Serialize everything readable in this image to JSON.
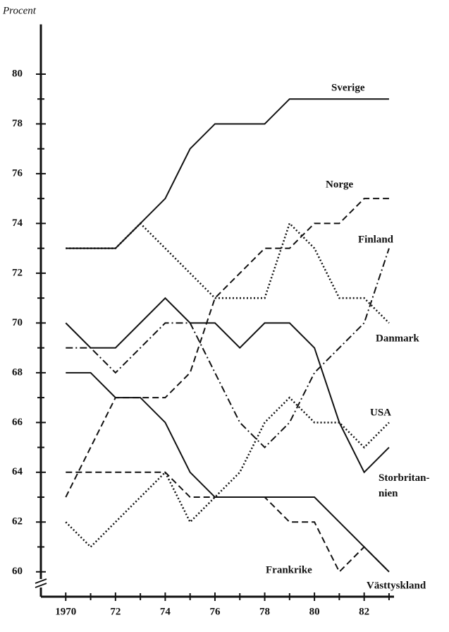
{
  "chart_data": {
    "type": "line",
    "y_axis_label": "Procent",
    "x": [
      1970,
      1971,
      1972,
      1973,
      1974,
      1975,
      1976,
      1977,
      1978,
      1979,
      1980,
      1981,
      1982,
      1983
    ],
    "xlim": [
      1969,
      1983.2
    ],
    "xticks": [
      1970,
      {
        "value": 1972,
        "label": "72"
      },
      {
        "value": 1974,
        "label": "74"
      },
      {
        "value": 1976,
        "label": "76"
      },
      {
        "value": 1978,
        "label": "78"
      },
      {
        "value": 1980,
        "label": "80"
      },
      {
        "value": 1982,
        "label": "82"
      }
    ],
    "ylim": [
      59,
      82
    ],
    "yticks": [
      60,
      62,
      64,
      66,
      68,
      70,
      72,
      74,
      76,
      78,
      80
    ],
    "series": [
      {
        "name": "Sverige",
        "color": "#111111",
        "style": "solid",
        "values": [
          73,
          73,
          73,
          74,
          75,
          77,
          78,
          78,
          78,
          79,
          79,
          79,
          79,
          79
        ]
      },
      {
        "name": "Norge",
        "color": "#111111",
        "style": "dashed",
        "values": [
          63,
          65,
          67,
          67,
          67,
          68,
          71,
          72,
          73,
          73,
          74,
          74,
          75,
          75
        ]
      },
      {
        "name": "Finland",
        "color": "#111111",
        "style": "dashdot",
        "values": [
          69,
          69,
          68,
          69,
          70,
          70,
          68,
          66,
          65,
          66,
          68,
          69,
          70,
          73
        ]
      },
      {
        "name": "Danmark",
        "color": "#111111",
        "style": "dotted",
        "values": [
          73,
          73,
          73,
          74,
          73,
          72,
          71,
          71,
          71,
          74,
          73,
          71,
          71,
          70
        ]
      },
      {
        "name": "USA",
        "color": "#111111",
        "style": "dotted",
        "values": [
          62,
          61,
          62,
          63,
          64,
          62,
          63,
          64,
          66,
          67,
          66,
          66,
          65,
          66
        ]
      },
      {
        "name": "Storbritan-nien",
        "color": "#111111",
        "style": "solid",
        "values": [
          70,
          69,
          69,
          70,
          71,
          70,
          70,
          69,
          70,
          70,
          69,
          66,
          64,
          65
        ]
      },
      {
        "name": "Frankrike",
        "color": "#111111",
        "style": "dashed",
        "values": [
          64,
          64,
          64,
          64,
          64,
          63,
          63,
          63,
          63,
          62,
          62,
          60,
          61,
          60
        ]
      },
      {
        "name": "Västtyskland",
        "color": "#111111",
        "style": "solid",
        "values": [
          68,
          68,
          67,
          67,
          66,
          64,
          63,
          63,
          63,
          63,
          63,
          62,
          61,
          60
        ]
      }
    ]
  }
}
